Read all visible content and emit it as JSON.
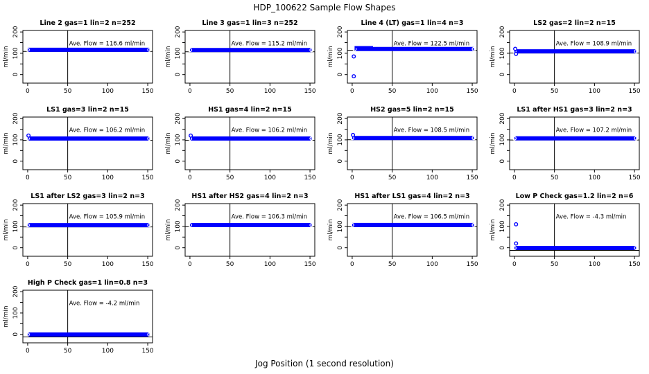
{
  "title": "HDP_100622  Sample Flow Shapes",
  "xlabel": "Jog Position (1 second resolution)",
  "chart_data": {
    "type": "scatter",
    "title": "HDP_100622  Sample Flow Shapes",
    "xlabel": "Jog Position (1 second resolution)",
    "ylabel": "ml/min",
    "point_color": "#0000ff",
    "axis_color": "#000000",
    "background_color": "#ffffff",
    "layout": {
      "rows": 4,
      "cols": 4,
      "xlim": [
        -6,
        156
      ],
      "ylim": [
        -40,
        207
      ],
      "x_ticks": [
        0,
        50,
        100,
        150
      ],
      "y_ticks_all": [
        0,
        50,
        100,
        150,
        200
      ],
      "y_tick_labels": [
        0,
        100,
        200
      ],
      "ref_vline_x": 50,
      "grid": false,
      "legend": "none"
    },
    "plots": [
      {
        "title": "Line 2 gas=1 lin=2 n=252",
        "ave_flow": 116.6,
        "annotation": "Ave. Flow =  116.6  ml/min",
        "band": {
          "x1": 0,
          "x2": 152,
          "y": 116.6
        },
        "outliers": []
      },
      {
        "title": "Line 3 gas=1 lin=3 n=252",
        "ave_flow": 115.2,
        "annotation": "Ave. Flow =  115.2  ml/min",
        "band": {
          "x1": 0,
          "x2": 152,
          "y": 115.2
        },
        "outliers": []
      },
      {
        "title": "Line 4 (LT) gas=1 lin=4 n=3",
        "ave_flow": 122.5,
        "annotation": "Ave. Flow =  122.5  ml/min",
        "band": {
          "x1": 3,
          "x2": 152,
          "y": 120.0
        },
        "extra_band": {
          "x1": 3,
          "x2": 26,
          "y": 129
        },
        "outliers": [
          {
            "x": 2,
            "y": 85
          },
          {
            "x": 2,
            "y": -8
          }
        ]
      },
      {
        "title": "LS2 gas=2 lin=2 n=15",
        "ave_flow": 108.9,
        "annotation": "Ave. Flow =  108.9  ml/min",
        "band": {
          "x1": 0,
          "x2": 152,
          "y": 108.9
        },
        "outliers": [
          {
            "x": 1,
            "y": 121
          },
          {
            "x": 2,
            "y": 97
          }
        ]
      },
      {
        "title": "LS1 gas=3 lin=2 n=15",
        "ave_flow": 106.2,
        "annotation": "Ave. Flow =  106.2  ml/min",
        "band": {
          "x1": 0,
          "x2": 152,
          "y": 106.2
        },
        "outliers": [
          {
            "x": 1,
            "y": 120
          }
        ]
      },
      {
        "title": "HS1 gas=4 lin=2 n=15",
        "ave_flow": 106.2,
        "annotation": "Ave. Flow =  106.2  ml/min",
        "band": {
          "x1": 0,
          "x2": 152,
          "y": 106.2
        },
        "outliers": [
          {
            "x": 1,
            "y": 120
          }
        ]
      },
      {
        "title": "HS2 gas=5 lin=2 n=15",
        "ave_flow": 108.5,
        "annotation": "Ave. Flow =  108.5  ml/min",
        "band": {
          "x1": 0,
          "x2": 152,
          "y": 108.5
        },
        "outliers": [
          {
            "x": 1,
            "y": 123
          }
        ]
      },
      {
        "title": "LS1 after HS1 gas=3 lin=2 n=3",
        "ave_flow": 107.2,
        "annotation": "Ave. Flow =  107.2  ml/min",
        "band": {
          "x1": 0,
          "x2": 152,
          "y": 107.2
        },
        "outliers": []
      },
      {
        "title": "LS1 after LS2 gas=3 lin=2 n=3",
        "ave_flow": 105.9,
        "annotation": "Ave. Flow =  105.9  ml/min",
        "band": {
          "x1": 0,
          "x2": 152,
          "y": 105.9
        },
        "outliers": []
      },
      {
        "title": "HS1 after HS2 gas=4 lin=2 n=3",
        "ave_flow": 106.3,
        "annotation": "Ave. Flow =  106.3  ml/min",
        "band": {
          "x1": 0,
          "x2": 152,
          "y": 106.3
        },
        "outliers": []
      },
      {
        "title": "HS1 after LS1 gas=4 lin=2 n=3",
        "ave_flow": 106.5,
        "annotation": "Ave. Flow =  106.5  ml/min",
        "band": {
          "x1": 0,
          "x2": 152,
          "y": 106.5
        },
        "outliers": []
      },
      {
        "title": "Low P Check gas=1.2 lin=2 n=6",
        "ave_flow": -4.3,
        "annotation": "Ave. Flow =  -4.3  ml/min",
        "band": {
          "x1": 0,
          "x2": 152,
          "y": -1
        },
        "outliers": [
          {
            "x": 2,
            "y": 110
          },
          {
            "x": 2,
            "y": 20
          }
        ]
      },
      {
        "title": "High P Check gas=1 lin=0.8 n=3",
        "ave_flow": -4.2,
        "annotation": "Ave. Flow =  -4.2  ml/min",
        "band": {
          "x1": 0,
          "x2": 152,
          "y": -1
        },
        "outliers": []
      }
    ]
  }
}
